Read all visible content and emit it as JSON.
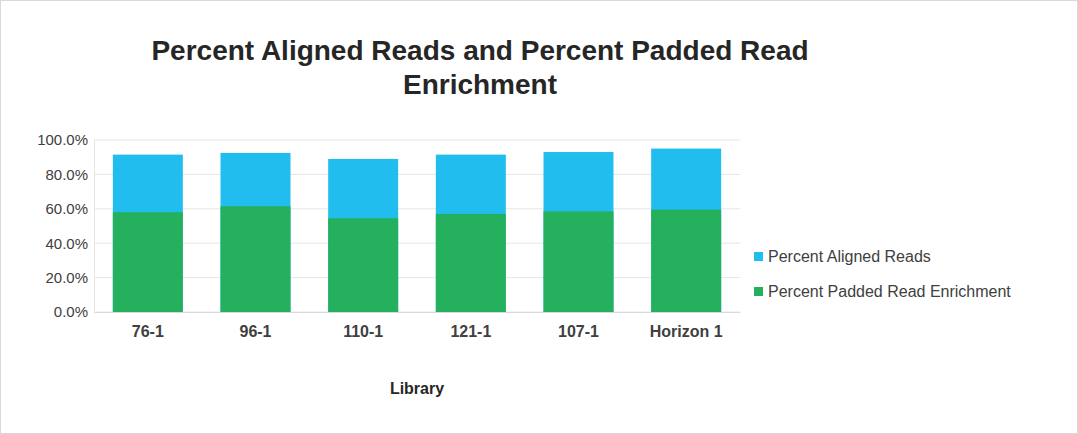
{
  "chart_data": {
    "type": "bar",
    "title": "Percent Aligned Reads and Percent Padded Read Enrichment",
    "x_label": "Library",
    "categories": [
      "76-1",
      "96-1",
      "110-1",
      "121-1",
      "107-1",
      "Horizon 1"
    ],
    "series": [
      {
        "name": "Percent Aligned Reads",
        "color": "#21bdef",
        "values": [
          91.5,
          92.5,
          89.0,
          91.5,
          93.0,
          95.0
        ]
      },
      {
        "name": "Percent Padded Read Enrichment",
        "color": "#25b05e",
        "values": [
          58.0,
          61.5,
          54.5,
          57.0,
          58.5,
          59.5
        ]
      }
    ],
    "stacked": false,
    "ylim": [
      0,
      100
    ],
    "yticks": [
      {
        "value": 0,
        "label": "0.0%"
      },
      {
        "value": 20,
        "label": "20.0%"
      },
      {
        "value": 40,
        "label": "40.0%"
      },
      {
        "value": 60,
        "label": "60.0%"
      },
      {
        "value": 80,
        "label": "80.0%"
      },
      {
        "value": 100,
        "label": "100.0%"
      }
    ],
    "grid": true,
    "legend": "right"
  }
}
